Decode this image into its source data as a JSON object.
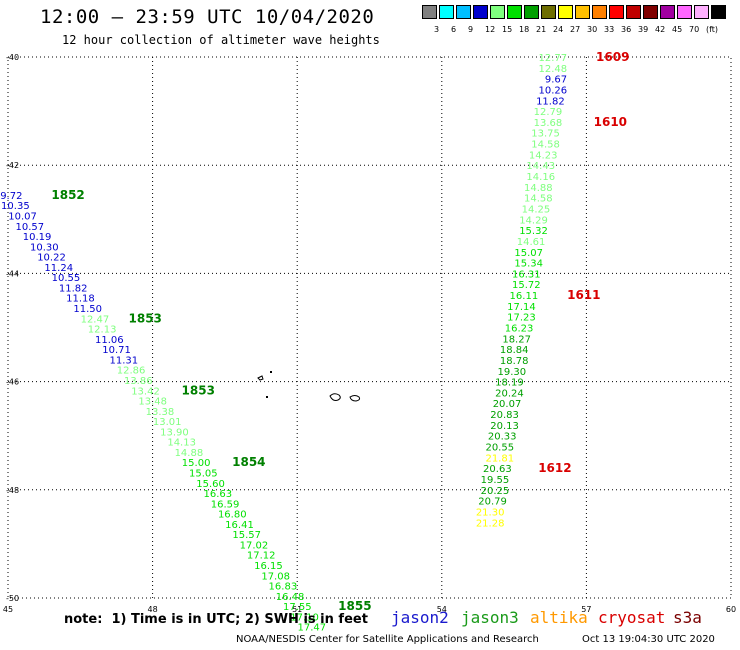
{
  "title": "12:00 – 23:59 UTC 10/04/2020",
  "subtitle": "12 hour collection of altimeter wave heights",
  "legend": {
    "colors": [
      "#808080",
      "#00ffff",
      "#00bfff",
      "#0000cd",
      "#7fff7f",
      "#00e000",
      "#00a000",
      "#6e6e00",
      "#ffff00",
      "#ffc000",
      "#ff8000",
      "#ff0000",
      "#c00000",
      "#800000",
      "#a000a0",
      "#ff66ff",
      "#ffb0ff",
      "#000000"
    ],
    "labels": [
      "3",
      "6",
      "9",
      "12",
      "15",
      "18",
      "21",
      "24",
      "27",
      "30",
      "33",
      "36",
      "39",
      "42",
      "45",
      "70",
      "(ft)"
    ]
  },
  "axes": {
    "lat_ticks": [
      "-40",
      "-42",
      "-44",
      "-46",
      "-48",
      "-50"
    ],
    "lon_ticks": [
      "45",
      "48",
      "51",
      "54",
      "57",
      "60"
    ]
  },
  "note": "note:  1) Time is in UTC; 2) SWH is in feet",
  "satellites": [
    {
      "name": "jason2",
      "color": "#1a1acd"
    },
    {
      "name": "jason3",
      "color": "#1a9a1a"
    },
    {
      "name": "altika",
      "color": "#ff9900"
    },
    {
      "name": "cryosat",
      "color": "#d90000"
    },
    {
      "name": "s3a",
      "color": "#7a0000"
    }
  ],
  "footer": {
    "credit": "NOAA/NESDIS Center for Satellite Applications and Research",
    "timestamp": "Oct 13 19:04:30 UTC 2020"
  },
  "tracks": [
    {
      "points": [
        {
          "lon": 45.3,
          "lat": -42.55,
          "v": "9.72",
          "c": "#0000cd"
        },
        {
          "lon": 45.45,
          "lat": -42.74,
          "v": "10.35",
          "c": "#0000cd"
        },
        {
          "lon": 45.6,
          "lat": -42.93,
          "v": "10.07",
          "c": "#0000cd"
        },
        {
          "lon": 45.75,
          "lat": -43.12,
          "v": "10.57",
          "c": "#0000cd"
        },
        {
          "lon": 45.9,
          "lat": -43.31,
          "v": "10.19",
          "c": "#0000cd"
        },
        {
          "lon": 46.05,
          "lat": -43.5,
          "v": "10.30",
          "c": "#0000cd"
        },
        {
          "lon": 46.2,
          "lat": -43.69,
          "v": "10.22",
          "c": "#0000cd"
        },
        {
          "lon": 46.35,
          "lat": -43.88,
          "v": "11.24",
          "c": "#0000cd"
        },
        {
          "lon": 46.5,
          "lat": -44.07,
          "v": "10.55",
          "c": "#0000cd"
        },
        {
          "lon": 46.65,
          "lat": -44.26,
          "v": "11.82",
          "c": "#0000cd"
        },
        {
          "lon": 46.8,
          "lat": -44.45,
          "v": "11.18",
          "c": "#0000cd"
        },
        {
          "lon": 46.95,
          "lat": -44.64,
          "v": "11.50",
          "c": "#0000cd"
        },
        {
          "lon": 47.1,
          "lat": -44.83,
          "v": "12.47",
          "c": "#7fff7f"
        },
        {
          "lon": 47.25,
          "lat": -45.02,
          "v": "12.13",
          "c": "#7fff7f"
        },
        {
          "lon": 47.4,
          "lat": -45.21,
          "v": "11.06",
          "c": "#0000cd"
        },
        {
          "lon": 47.55,
          "lat": -45.4,
          "v": "10.71",
          "c": "#0000cd"
        },
        {
          "lon": 47.7,
          "lat": -45.59,
          "v": "11.31",
          "c": "#0000cd"
        },
        {
          "lon": 47.85,
          "lat": -45.78,
          "v": "12.86",
          "c": "#7fff7f"
        },
        {
          "lon": 48.0,
          "lat": -45.97,
          "v": "13.86",
          "c": "#7fff7f"
        },
        {
          "lon": 48.15,
          "lat": -46.16,
          "v": "13.42",
          "c": "#7fff7f"
        },
        {
          "lon": 48.3,
          "lat": -46.35,
          "v": "13.48",
          "c": "#7fff7f"
        },
        {
          "lon": 48.45,
          "lat": -46.54,
          "v": "13.38",
          "c": "#7fff7f"
        },
        {
          "lon": 48.6,
          "lat": -46.73,
          "v": "13.01",
          "c": "#7fff7f"
        },
        {
          "lon": 48.75,
          "lat": -46.92,
          "v": "13.90",
          "c": "#7fff7f"
        },
        {
          "lon": 48.9,
          "lat": -47.11,
          "v": "14.13",
          "c": "#7fff7f"
        },
        {
          "lon": 49.05,
          "lat": -47.3,
          "v": "14.88",
          "c": "#7fff7f"
        },
        {
          "lon": 49.2,
          "lat": -47.49,
          "v": "15.00",
          "c": "#00e000"
        },
        {
          "lon": 49.35,
          "lat": -47.68,
          "v": "15.05",
          "c": "#00e000"
        },
        {
          "lon": 49.5,
          "lat": -47.87,
          "v": "15.60",
          "c": "#00e000"
        },
        {
          "lon": 49.65,
          "lat": -48.06,
          "v": "16.63",
          "c": "#00e000"
        },
        {
          "lon": 49.8,
          "lat": -48.25,
          "v": "16.59",
          "c": "#00e000"
        },
        {
          "lon": 49.95,
          "lat": -48.44,
          "v": "16.80",
          "c": "#00e000"
        },
        {
          "lon": 50.1,
          "lat": -48.63,
          "v": "16.41",
          "c": "#00e000"
        },
        {
          "lon": 50.25,
          "lat": -48.82,
          "v": "15.57",
          "c": "#00e000"
        },
        {
          "lon": 50.4,
          "lat": -49.01,
          "v": "17.02",
          "c": "#00e000"
        },
        {
          "lon": 50.55,
          "lat": -49.2,
          "v": "17.12",
          "c": "#00e000"
        },
        {
          "lon": 50.7,
          "lat": -49.39,
          "v": "16.15",
          "c": "#00e000"
        },
        {
          "lon": 50.85,
          "lat": -49.58,
          "v": "17.08",
          "c": "#00e000"
        },
        {
          "lon": 51.0,
          "lat": -49.77,
          "v": "16.83",
          "c": "#00e000"
        },
        {
          "lon": 51.15,
          "lat": -49.96,
          "v": "16.48",
          "c": "#00e000"
        },
        {
          "lon": 51.3,
          "lat": -50.15,
          "v": "17.55",
          "c": "#00e000"
        },
        {
          "lon": 51.45,
          "lat": -50.34,
          "v": "17.10",
          "c": "#00e000"
        },
        {
          "lon": 51.6,
          "lat": -50.53,
          "v": "17.47",
          "c": "#00e000"
        }
      ]
    },
    {
      "points": [
        {
          "lon": 56.6,
          "lat": -40.0,
          "v": "12.77",
          "c": "#7fff7f"
        },
        {
          "lon": 56.6,
          "lat": -40.2,
          "v": "12.48",
          "c": "#7fff7f"
        },
        {
          "lon": 56.6,
          "lat": -40.4,
          "v": "9.67",
          "c": "#0000cd"
        },
        {
          "lon": 56.6,
          "lat": -40.6,
          "v": "10.26",
          "c": "#0000cd"
        },
        {
          "lon": 56.55,
          "lat": -40.8,
          "v": "11.82",
          "c": "#0000cd"
        },
        {
          "lon": 56.5,
          "lat": -41.0,
          "v": "12.79",
          "c": "#7fff7f"
        },
        {
          "lon": 56.5,
          "lat": -41.2,
          "v": "13.68",
          "c": "#7fff7f"
        },
        {
          "lon": 56.45,
          "lat": -41.4,
          "v": "13.75",
          "c": "#7fff7f"
        },
        {
          "lon": 56.45,
          "lat": -41.6,
          "v": "14.58",
          "c": "#7fff7f"
        },
        {
          "lon": 56.4,
          "lat": -41.8,
          "v": "14.23",
          "c": "#7fff7f"
        },
        {
          "lon": 56.35,
          "lat": -42.0,
          "v": "14.43",
          "c": "#7fff7f"
        },
        {
          "lon": 56.35,
          "lat": -42.2,
          "v": "14.16",
          "c": "#7fff7f"
        },
        {
          "lon": 56.3,
          "lat": -42.4,
          "v": "14.88",
          "c": "#7fff7f"
        },
        {
          "lon": 56.3,
          "lat": -42.6,
          "v": "14.58",
          "c": "#7fff7f"
        },
        {
          "lon": 56.25,
          "lat": -42.8,
          "v": "14.25",
          "c": "#7fff7f"
        },
        {
          "lon": 56.2,
          "lat": -43.0,
          "v": "14.29",
          "c": "#7fff7f"
        },
        {
          "lon": 56.2,
          "lat": -43.2,
          "v": "15.32",
          "c": "#00e000"
        },
        {
          "lon": 56.15,
          "lat": -43.4,
          "v": "14.61",
          "c": "#7fff7f"
        },
        {
          "lon": 56.1,
          "lat": -43.6,
          "v": "15.07",
          "c": "#00e000"
        },
        {
          "lon": 56.1,
          "lat": -43.8,
          "v": "15.34",
          "c": "#00e000"
        },
        {
          "lon": 56.05,
          "lat": -44.0,
          "v": "16.31",
          "c": "#00e000"
        },
        {
          "lon": 56.05,
          "lat": -44.2,
          "v": "15.72",
          "c": "#00e000"
        },
        {
          "lon": 56.0,
          "lat": -44.4,
          "v": "16.11",
          "c": "#00e000"
        },
        {
          "lon": 55.95,
          "lat": -44.6,
          "v": "17.14",
          "c": "#00e000"
        },
        {
          "lon": 55.95,
          "lat": -44.8,
          "v": "17.23",
          "c": "#00e000"
        },
        {
          "lon": 55.9,
          "lat": -45.0,
          "v": "16.23",
          "c": "#00e000"
        },
        {
          "lon": 55.85,
          "lat": -45.2,
          "v": "18.27",
          "c": "#00a000"
        },
        {
          "lon": 55.8,
          "lat": -45.4,
          "v": "18.84",
          "c": "#00a000"
        },
        {
          "lon": 55.8,
          "lat": -45.6,
          "v": "18.78",
          "c": "#00a000"
        },
        {
          "lon": 55.75,
          "lat": -45.8,
          "v": "19.30",
          "c": "#00a000"
        },
        {
          "lon": 55.7,
          "lat": -46.0,
          "v": "18.19",
          "c": "#00a000"
        },
        {
          "lon": 55.7,
          "lat": -46.2,
          "v": "20.24",
          "c": "#00a000"
        },
        {
          "lon": 55.65,
          "lat": -46.4,
          "v": "20.07",
          "c": "#00a000"
        },
        {
          "lon": 55.6,
          "lat": -46.6,
          "v": "20.83",
          "c": "#00a000"
        },
        {
          "lon": 55.6,
          "lat": -46.8,
          "v": "20.13",
          "c": "#00a000"
        },
        {
          "lon": 55.55,
          "lat": -47.0,
          "v": "20.33",
          "c": "#00a000"
        },
        {
          "lon": 55.5,
          "lat": -47.2,
          "v": "20.55",
          "c": "#00a000"
        },
        {
          "lon": 55.5,
          "lat": -47.4,
          "v": "21.81",
          "c": "#ffff00"
        },
        {
          "lon": 55.45,
          "lat": -47.6,
          "v": "20.63",
          "c": "#00a000"
        },
        {
          "lon": 55.4,
          "lat": -47.8,
          "v": "19.55",
          "c": "#00a000"
        },
        {
          "lon": 55.4,
          "lat": -48.0,
          "v": "20.25",
          "c": "#00a000"
        },
        {
          "lon": 55.35,
          "lat": -48.2,
          "v": "20.79",
          "c": "#00a000"
        },
        {
          "lon": 55.3,
          "lat": -48.4,
          "v": "21.30",
          "c": "#ffff00"
        },
        {
          "lon": 55.3,
          "lat": -48.6,
          "v": "21.28",
          "c": "#ffff00"
        }
      ]
    }
  ],
  "time_labels": [
    {
      "t": "1852",
      "lon": 45.9,
      "lat": -42.55,
      "c": "#008000"
    },
    {
      "t": "1853",
      "lon": 47.5,
      "lat": -44.83,
      "c": "#008000"
    },
    {
      "t": "1853",
      "lon": 48.6,
      "lat": -46.16,
      "c": "#008000"
    },
    {
      "t": "1854",
      "lon": 49.65,
      "lat": -47.49,
      "c": "#008000"
    },
    {
      "t": "1855",
      "lon": 51.85,
      "lat": -50.15,
      "c": "#008000"
    },
    {
      "t": "1609",
      "lon": 57.2,
      "lat": -40.0,
      "c": "#d90000"
    },
    {
      "t": "1610",
      "lon": 57.15,
      "lat": -41.2,
      "c": "#d90000"
    },
    {
      "t": "1611",
      "lon": 56.6,
      "lat": -44.4,
      "c": "#d90000"
    },
    {
      "t": "1612",
      "lon": 56.0,
      "lat": -47.6,
      "c": "#d90000"
    }
  ]
}
